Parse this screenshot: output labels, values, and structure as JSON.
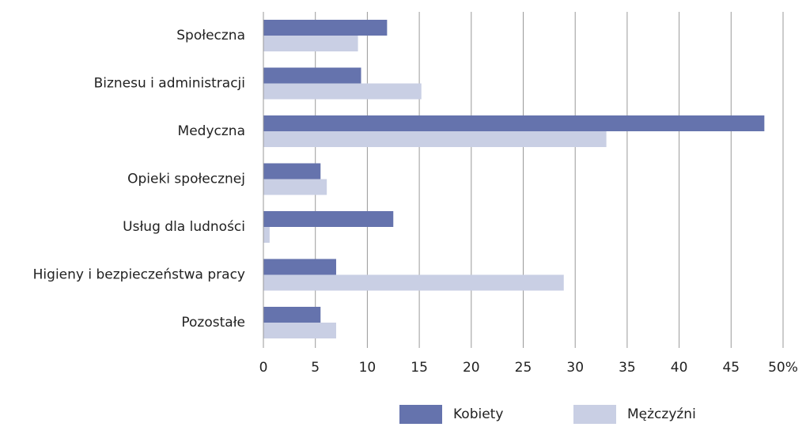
{
  "chart_data": {
    "type": "hbar",
    "categories": [
      "Społeczna",
      "Biznesu i administracji",
      "Medyczna",
      "Opieki społecznej",
      "Usług dla ludności",
      "Higieny i bezpieczeństwa pracy",
      "Pozostałe"
    ],
    "series": [
      {
        "name": "Kobiety",
        "color": "#6573ad",
        "values": [
          11.9,
          9.4,
          48.2,
          5.5,
          12.5,
          7.0,
          5.5
        ]
      },
      {
        "name": "Mężczyźni",
        "color": "#c9cfe4",
        "values": [
          9.1,
          15.2,
          33.0,
          6.1,
          0.6,
          28.9,
          7.0
        ]
      }
    ],
    "xlim": [
      0,
      50
    ],
    "xticks": [
      0,
      5,
      10,
      15,
      20,
      25,
      30,
      35,
      40,
      45,
      {
        "value": 50,
        "label": "50%"
      }
    ],
    "grid": true,
    "legend": "bottom"
  }
}
